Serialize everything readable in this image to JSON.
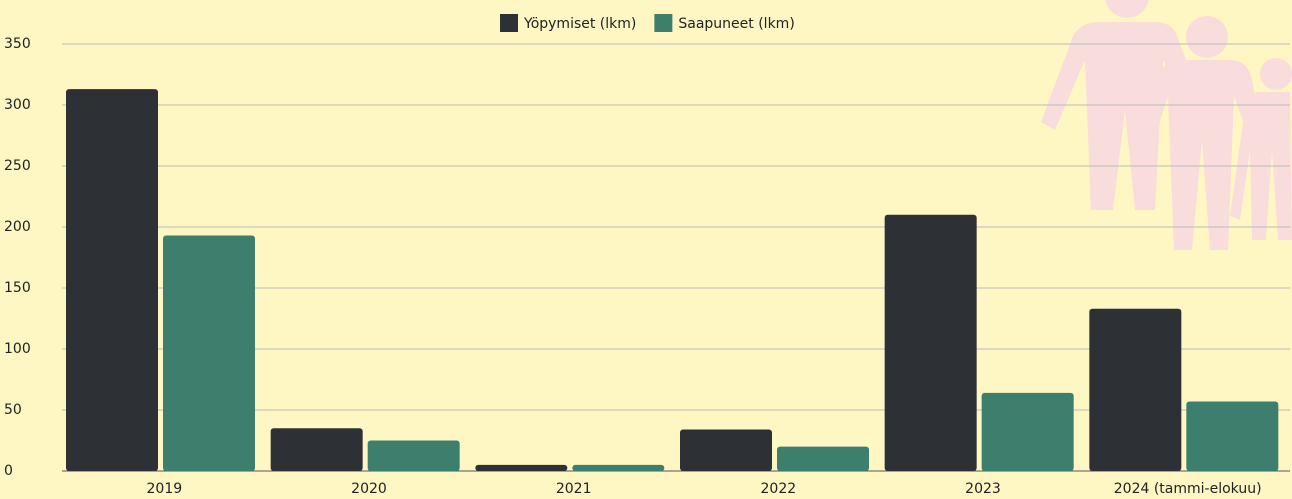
{
  "chart_data": {
    "type": "bar",
    "categories": [
      "2019",
      "2020",
      "2021",
      "2022",
      "2023",
      "2024 (tammi-elokuu)"
    ],
    "series": [
      {
        "name": "Yöpymiset (lkm)",
        "color": "#2d3136",
        "values": [
          313,
          35,
          5,
          34,
          210,
          133
        ]
      },
      {
        "name": "Saapuneet (lkm)",
        "color": "#3c7f6c",
        "values": [
          193,
          25,
          5,
          20,
          64,
          57
        ]
      }
    ],
    "ylim": [
      0,
      350
    ],
    "yticks": [
      0,
      50,
      100,
      150,
      200,
      250,
      300,
      350
    ],
    "grid": true,
    "legend": "top"
  }
}
